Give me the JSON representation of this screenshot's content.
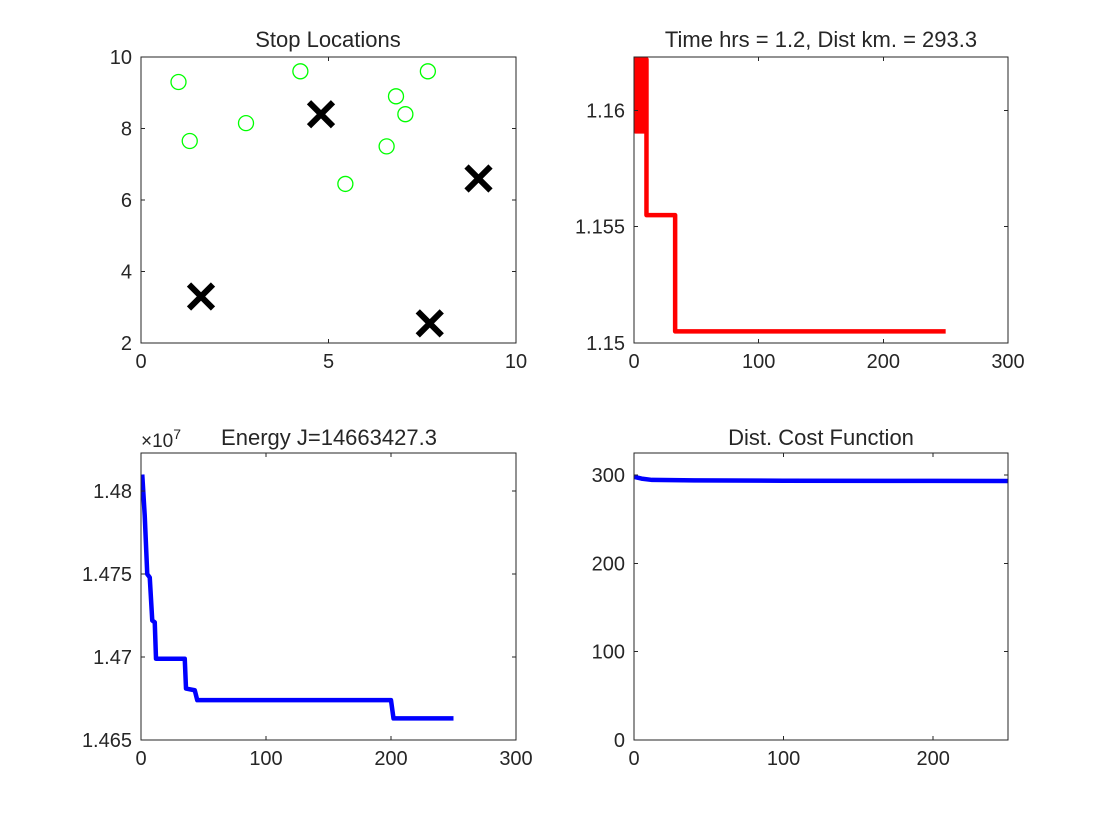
{
  "figure": {
    "background": "#ffffff"
  },
  "chart_data": [
    {
      "id": "stops",
      "type": "scatter",
      "title": "Stop Locations",
      "xlim": [
        0,
        10
      ],
      "ylim": [
        2,
        10
      ],
      "xticks": [
        0,
        5,
        10
      ],
      "yticks": [
        2,
        4,
        6,
        8,
        10
      ],
      "grid": false,
      "series": [
        {
          "marker": "circle",
          "color": "#00ff00",
          "points": [
            [
              1.0,
              9.3
            ],
            [
              1.3,
              7.65
            ],
            [
              2.8,
              8.15
            ],
            [
              4.25,
              9.6
            ],
            [
              5.45,
              6.45
            ],
            [
              6.55,
              7.5
            ],
            [
              6.8,
              8.9
            ],
            [
              7.05,
              8.4
            ],
            [
              7.65,
              9.6
            ]
          ]
        },
        {
          "marker": "x",
          "color": "#000000",
          "points": [
            [
              4.8,
              8.4
            ],
            [
              9.0,
              6.6
            ],
            [
              1.6,
              3.3
            ],
            [
              7.7,
              2.55
            ]
          ]
        }
      ]
    },
    {
      "id": "time",
      "type": "line",
      "title": "Time hrs = 1.2, Dist km. = 293.3",
      "xlim": [
        0,
        300
      ],
      "ylim": [
        1.15,
        1.1623
      ],
      "xticks": [
        0,
        100,
        200,
        300
      ],
      "yticks": [
        1.15,
        1.155,
        1.16
      ],
      "ytick_labels": [
        "1.15",
        "1.155",
        "1.16"
      ],
      "grid": false,
      "series": [
        {
          "color": "#ff0000",
          "oscillation": {
            "x_range": [
              1,
              10
            ],
            "y_range": [
              1.1591,
              1.1622
            ]
          },
          "points": [
            [
              10,
              1.1622
            ],
            [
              10,
              1.1555
            ],
            [
              33,
              1.1555
            ],
            [
              33,
              1.1505
            ],
            [
              250,
              1.1505
            ]
          ]
        }
      ]
    },
    {
      "id": "energy",
      "type": "line",
      "title": "Energy J=14663427.3",
      "exponent_label": "×10",
      "exponent_power": "7",
      "xlim": [
        0,
        300
      ],
      "ylim": [
        1.465,
        1.4823
      ],
      "xticks": [
        0,
        100,
        200,
        300
      ],
      "yticks": [
        1.465,
        1.47,
        1.475,
        1.48
      ],
      "ytick_labels": [
        "1.465",
        "1.47",
        "1.475",
        "1.48"
      ],
      "grid": false,
      "series": [
        {
          "color": "#0000ff",
          "points": [
            [
              1,
              1.481
            ],
            [
              3,
              1.4785
            ],
            [
              5,
              1.475
            ],
            [
              7,
              1.4748
            ],
            [
              9,
              1.4722
            ],
            [
              11,
              1.4721
            ],
            [
              12,
              1.4699
            ],
            [
              35,
              1.4699
            ],
            [
              36,
              1.4681
            ],
            [
              43,
              1.468
            ],
            [
              45,
              1.4674
            ],
            [
              200,
              1.4674
            ],
            [
              202,
              1.4663
            ],
            [
              250,
              1.4663
            ]
          ]
        }
      ]
    },
    {
      "id": "dist",
      "type": "line",
      "title": "Dist. Cost Function",
      "xlim": [
        0,
        250
      ],
      "ylim": [
        0,
        325
      ],
      "xticks": [
        0,
        100,
        200
      ],
      "yticks": [
        0,
        100,
        200,
        300
      ],
      "grid": false,
      "series": [
        {
          "color": "#0000ff",
          "points": [
            [
              0,
              298
            ],
            [
              5,
              296
            ],
            [
              12,
              294.5
            ],
            [
              40,
              294
            ],
            [
              100,
              293.6
            ],
            [
              200,
              293.4
            ],
            [
              250,
              293.3
            ]
          ]
        }
      ]
    }
  ]
}
